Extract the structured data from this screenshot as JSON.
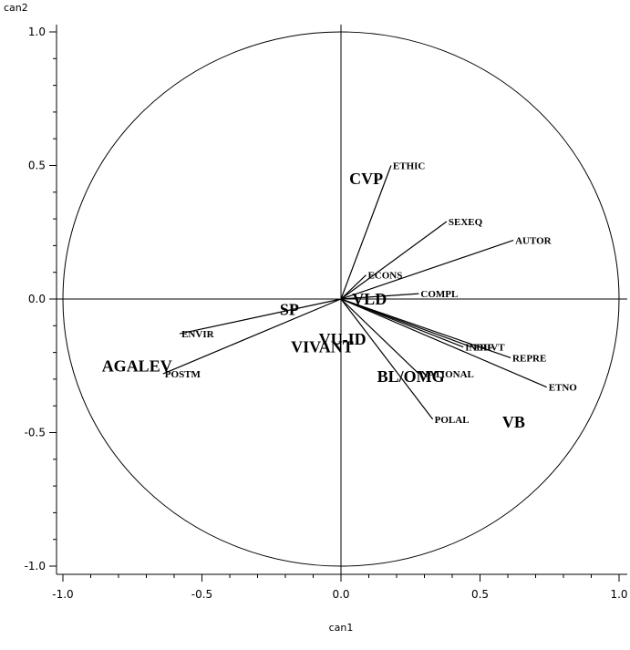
{
  "chart_data": {
    "type": "scatter",
    "title": "",
    "xlabel": "can1",
    "ylabel": "can2",
    "xlim": [
      -1.0,
      1.0
    ],
    "ylim": [
      -1.0,
      1.0
    ],
    "grid": false,
    "unit_circle": true,
    "x_ticks": [
      -1.0,
      -0.5,
      0.0,
      0.5,
      1.0
    ],
    "x_tick_labels": [
      "-1.0",
      "-0.5",
      "0.0",
      "0.5",
      "1.0"
    ],
    "y_ticks": [
      1.0,
      0.5,
      0.0,
      -0.5,
      -1.0
    ],
    "y_tick_labels": [
      "1.0",
      "0.5",
      "0.0",
      "-0.5",
      "-1.0"
    ],
    "vectors": [
      {
        "label": "ETHIC",
        "x": 0.18,
        "y": 0.5
      },
      {
        "label": "SEXEQ",
        "x": 0.38,
        "y": 0.29
      },
      {
        "label": "AUTOR",
        "x": 0.62,
        "y": 0.22
      },
      {
        "label": "ECONS",
        "x": 0.09,
        "y": 0.09
      },
      {
        "label": "COMPL",
        "x": 0.28,
        "y": 0.02
      },
      {
        "label": "ENVIR",
        "x": -0.58,
        "y": -0.13
      },
      {
        "label": "POSTM",
        "x": -0.64,
        "y": -0.28
      },
      {
        "label": "INDIF",
        "x": 0.44,
        "y": -0.18
      },
      {
        "label": "PRIVT",
        "x": 0.47,
        "y": -0.18
      },
      {
        "label": "REPRE",
        "x": 0.61,
        "y": -0.22
      },
      {
        "label": "ETNO",
        "x": 0.74,
        "y": -0.33
      },
      {
        "label": "NATIONAL",
        "x": 0.28,
        "y": -0.28
      },
      {
        "label": "POLAL",
        "x": 0.33,
        "y": -0.45
      }
    ],
    "groups": [
      {
        "label": "CVP",
        "x": 0.03,
        "y": 0.45
      },
      {
        "label": "VLD",
        "x": 0.04,
        "y": 0.0
      },
      {
        "label": "SP",
        "x": -0.22,
        "y": -0.04
      },
      {
        "label": "VU-ID",
        "x": -0.08,
        "y": -0.15
      },
      {
        "label": "VIVANT",
        "x": -0.18,
        "y": -0.18
      },
      {
        "label": "AGALEV",
        "x": -0.86,
        "y": -0.25
      },
      {
        "label": "BL/OMG",
        "x": 0.13,
        "y": -0.29
      },
      {
        "label": "VB",
        "x": 0.58,
        "y": -0.46
      }
    ]
  }
}
